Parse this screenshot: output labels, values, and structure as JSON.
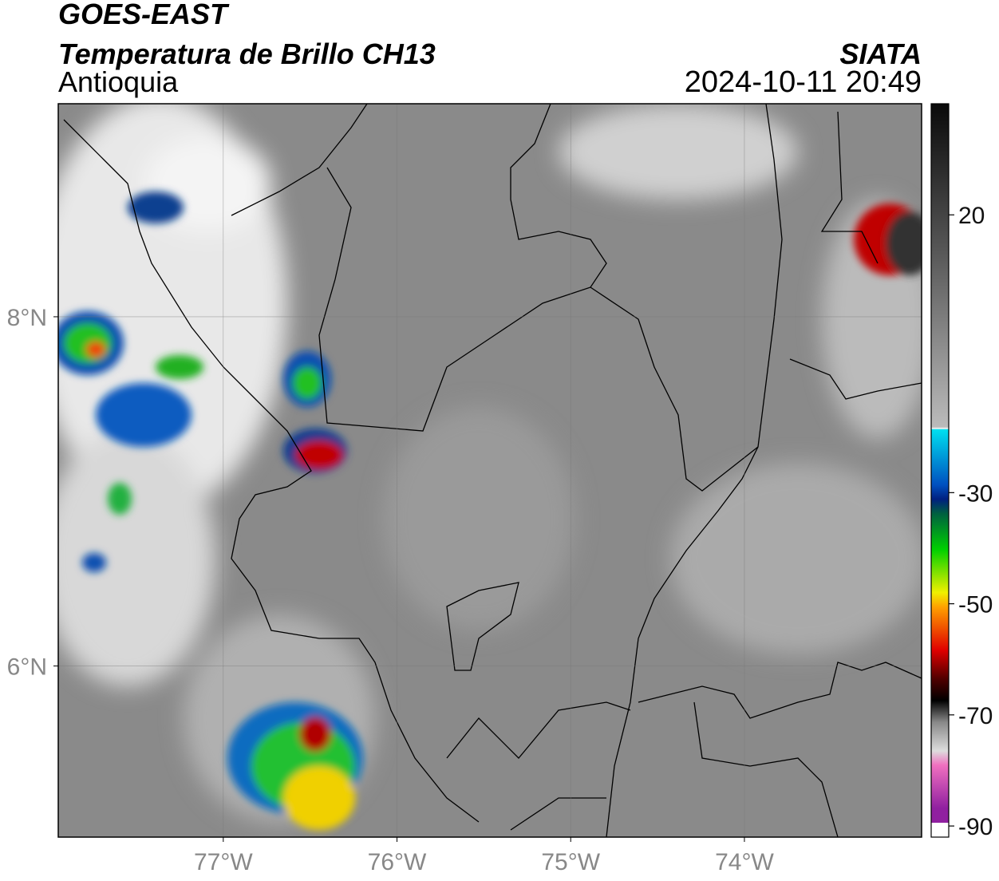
{
  "header": {
    "title": "GOES-EAST",
    "subtitle": "Temperatura de Brillo CH13",
    "region": "Antioquia",
    "source": "SIATA",
    "datetime": "2024-10-11 20:49"
  },
  "map": {
    "xlim": [
      -77.95,
      -72.98
    ],
    "ylim": [
      5.02,
      9.22
    ],
    "xticks": [
      {
        "value": -77,
        "label": "77°W"
      },
      {
        "value": -76,
        "label": "76°W"
      },
      {
        "value": -75,
        "label": "75°W"
      },
      {
        "value": -74,
        "label": "74°W"
      }
    ],
    "yticks": [
      {
        "value": 8,
        "label": "8°N"
      },
      {
        "value": 6,
        "label": "6°N"
      }
    ],
    "grid": true
  },
  "colorbar": {
    "lim": [
      -92,
      40
    ],
    "ticks": [
      20,
      -30,
      -50,
      -70,
      -90
    ]
  }
}
